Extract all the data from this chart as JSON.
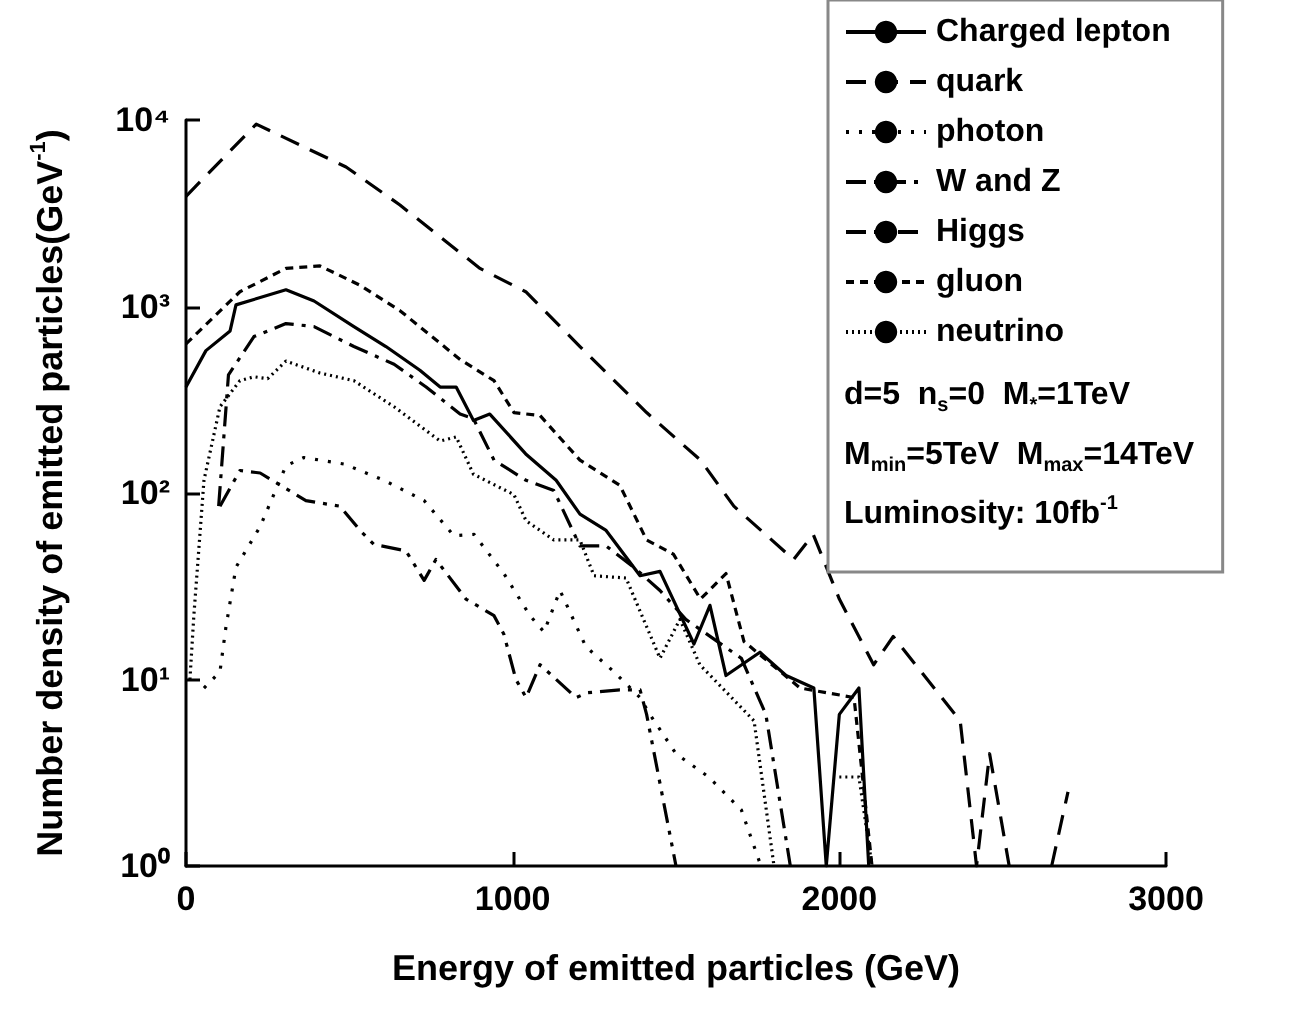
{
  "chart_data": {
    "type": "line",
    "xlabel": "Energy of emitted particles (GeV)",
    "ylabel": "Number density of emitted particles(GeV$^{-1}$)",
    "xlim": [
      0,
      3000
    ],
    "xticks": [
      0,
      1000,
      2000,
      3000
    ],
    "ylim": [
      1,
      10000
    ],
    "yticks": [
      {
        "value": 1,
        "label": "10⁰"
      },
      {
        "value": 10,
        "label": "10¹"
      },
      {
        "value": 100,
        "label": "10²"
      },
      {
        "value": 1000,
        "label": "10³"
      },
      {
        "value": 10000,
        "label": "10⁴"
      }
    ],
    "log": "y",
    "grid": false,
    "legend": "top right",
    "marker": "none",
    "annotations": [
      "d=5  n$_{s}$=0  M$_{*}$=1TeV",
      "M$_{min}$=5TeV  M$_{max}$=14TeV",
      "Luminosity: 10fb$^{-1}$"
    ],
    "series": [
      {
        "name": "Charged lepton",
        "color": "#000000",
        "line_style": "solid",
        "x": [
          0,
          61,
          135,
          153,
          306,
          392,
          514,
          612,
          716,
          778,
          827,
          880,
          930,
          1040,
          1133,
          1206,
          1286,
          1390,
          1451,
          1555,
          1604,
          1653,
          1757,
          1837,
          1922,
          1960,
          2000,
          2060,
          2090
        ],
        "values": [
          370,
          580,
          740,
          1020,
          1230,
          1070,
          780,
          610,
          455,
          370,
          370,
          245,
          265,
          162,
          117,
          77,
          63,
          36,
          38,
          15.5,
          25,
          10.5,
          14,
          10.5,
          9,
          1,
          6.5,
          9,
          1
        ]
      },
      {
        "name": "quark",
        "color": "#000000",
        "line_style": "dashed",
        "x": [
          0,
          215,
          490,
          655,
          900,
          1040,
          1206,
          1410,
          1575,
          1677,
          1860,
          1920,
          2000,
          2105,
          2165,
          2290,
          2370,
          2420,
          2460,
          2520,
          2600,
          2650,
          2700
        ],
        "values": [
          3900,
          9500,
          5600,
          3500,
          1600,
          1200,
          610,
          270,
          150,
          85,
          44,
          60,
          27,
          12,
          17,
          9,
          6,
          1,
          4,
          1,
          null,
          1,
          2.5
        ]
      },
      {
        "name": "photon",
        "color": "#000000",
        "line_style": "dotted",
        "x": [
          55,
          104,
          122,
          153,
          227,
          306,
          361,
          484,
          606,
          729,
          820,
          882,
          973,
          1053,
          1096,
          1145,
          1224,
          1310,
          1390,
          1420,
          1500,
          1600,
          1700,
          1760
        ],
        "values": [
          9,
          11,
          19,
          40,
          66,
          140,
          155,
          143,
          117,
          91,
          59,
          60,
          37,
          22,
          18,
          30,
          15,
          11,
          8,
          6.5,
          4,
          3,
          2,
          1
        ]
      },
      {
        "name": "W and Z",
        "color": "#000000",
        "line_style": "dashdot",
        "x": [
          100,
          130,
          208,
          306,
          392,
          514,
          637,
          735,
          839,
          880,
          943,
          1041,
          1126,
          1206,
          1286,
          1371,
          1451,
          1530,
          1700,
          1775,
          1850
        ],
        "values": [
          85,
          430,
          690,
          810,
          780,
          610,
          490,
          370,
          265,
          250,
          150,
          117,
          103,
          52,
          52,
          40,
          30,
          21,
          13,
          6.5,
          1
        ]
      },
      {
        "name": "Higgs",
        "color": "#000000",
        "line_style": "dashdotdot",
        "x": [
          104,
          165,
          227,
          367,
          471,
          533,
          575,
          673,
          729,
          765,
          857,
          943,
          973,
          1010,
          1041,
          1084,
          1194,
          1230,
          1328,
          1390,
          1410,
          1500
        ],
        "values": [
          85,
          132,
          128,
          91,
          85,
          63,
          53,
          49,
          34,
          44,
          27,
          22,
          17.5,
          10,
          8,
          12,
          8,
          8.5,
          8.8,
          8.8,
          6.5,
          1
        ]
      },
      {
        "name": "gluon",
        "color": "#000000",
        "line_style": "shortdash",
        "x": [
          0,
          165,
          306,
          410,
          533,
          655,
          839,
          943,
          1004,
          1084,
          1206,
          1328,
          1410,
          1492,
          1575,
          1653,
          1708,
          1880,
          2045,
          2100
        ],
        "values": [
          630,
          1200,
          1600,
          1650,
          1300,
          950,
          520,
          400,
          270,
          260,
          150,
          110,
          56,
          47,
          27,
          37,
          16,
          9,
          8,
          1
        ]
      },
      {
        "name": "neutrino",
        "color": "#000000",
        "line_style": "densedot",
        "x": [
          12,
          24,
          55,
          104,
          165,
          208,
          250,
          306,
          410,
          514,
          637,
          778,
          827,
          880,
          1004,
          1041,
          1126,
          1206,
          1249,
          1347,
          1451,
          1512,
          1573,
          1739,
          1800,
          1900,
          2000,
          2060,
          2100
        ],
        "values": [
          10,
          22,
          117,
          290,
          400,
          420,
          410,
          510,
          440,
          400,
          290,
          190,
          200,
          126,
          98,
          71,
          56,
          56,
          36,
          35,
          13,
          21,
          12,
          6,
          1,
          null,
          3,
          3,
          1
        ]
      }
    ]
  }
}
